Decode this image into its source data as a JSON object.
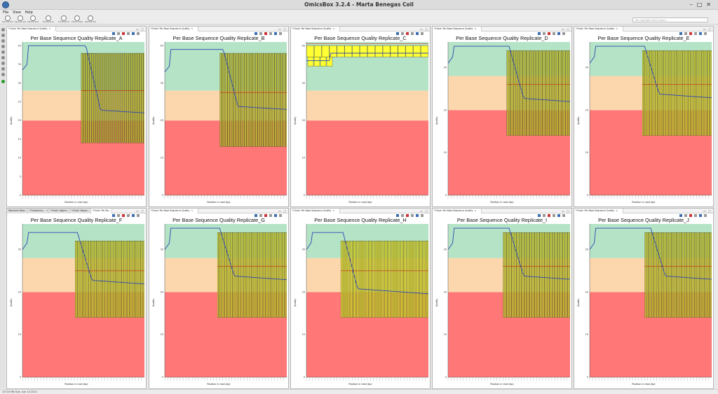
{
  "app": {
    "title": "OmicsBox 3.2.4 - Marta Benegas Coll",
    "window_controls": [
      "–",
      "□",
      "✕"
    ]
  },
  "menu": [
    "File",
    "View",
    "Help"
  ],
  "toolbar": {
    "buttons": [
      "Genome Tools",
      "Genome Analysis",
      "Genome Tools",
      "Functional Analysis",
      "Functional Analysis",
      "Omics Analysis",
      "Genome Tools",
      "OmicsBox"
    ],
    "search_placeholder": "Run highlight search cases..."
  },
  "status": "10716 MB Size, Apr 24 2024",
  "colors": {
    "green": "#b4e3c6",
    "orange": "#fcd7ae",
    "red": "#ff7777",
    "box": "#ffff33",
    "line": "#2b47b3"
  },
  "charts": [
    {
      "id": "A",
      "title": "Per Base Sequence Quality Replicate_A",
      "tab": "*Chart: Per Base Sequence Quality",
      "ylabel": "Quality",
      "xlabel": "Position in read (bp)",
      "ymax": 41,
      "yticks": [
        0,
        5,
        10,
        15,
        20,
        25,
        30,
        35,
        40
      ],
      "drop": 0.52,
      "top": 40,
      "hi": 37.5,
      "lo": 23,
      "boxHi": 38,
      "boxLo": 14,
      "boxStart": 0.48,
      "boxDense": 60,
      "redBand": true
    },
    {
      "id": "B",
      "title": "Per Base Sequence Quality Replicate_B",
      "tab": "*Chart: Per Base Sequence Quality",
      "ylabel": "Quality",
      "xlabel": "Position in read (bp)",
      "ymax": 41,
      "yticks": [
        0,
        10,
        20,
        30,
        40
      ],
      "drop": 0.48,
      "top": 39,
      "hi": 37,
      "lo": 24,
      "boxHi": 38,
      "boxLo": 13,
      "boxStart": 0.45,
      "boxDense": 60,
      "redBand": true
    },
    {
      "id": "C",
      "title": "Per Base Sequence Quality Replicate_C",
      "tab": "*Chart: Per Base Sequence Quality",
      "ylabel": "Quality",
      "xlabel": "Position in read (bp)",
      "ymax": 41,
      "yticks": [
        0,
        10,
        20,
        30,
        40
      ],
      "drop": 0.0,
      "top": 38,
      "hi": 38,
      "lo": 38,
      "boxHi": 40,
      "boxLo": 37,
      "boxStart": 0.0,
      "boxDense": 16,
      "redBand": false,
      "flat": true
    },
    {
      "id": "D",
      "title": "Per Base Sequence Quality Replicate_D",
      "tab": "*Chart: Per Base Sequence Quality",
      "ylabel": "Quality",
      "xlabel": "Position in read (bp)",
      "ymax": 36,
      "yticks": [
        0,
        10,
        20,
        30
      ],
      "drop": 0.5,
      "top": 35,
      "hi": 35,
      "lo": 23,
      "boxHi": 34,
      "boxLo": 14,
      "boxStart": 0.48,
      "boxDense": 55,
      "redBand": false
    },
    {
      "id": "E",
      "title": "Per Base Sequence Quality Replicate_E",
      "tab": "*Chart: Per Base Sequence Quality",
      "ylabel": "Quality",
      "xlabel": "Position in read (bp)",
      "ymax": 36,
      "yticks": [
        0,
        10,
        20,
        30
      ],
      "drop": 0.45,
      "top": 35,
      "hi": 35,
      "lo": 24,
      "boxHi": 34,
      "boxLo": 14,
      "boxStart": 0.43,
      "boxDense": 55,
      "redBand": false
    },
    {
      "id": "F",
      "title": "Per Base Sequence Quality Replicate_F",
      "tab": "*Chart: Per Ba...",
      "ylabel": "Quality",
      "xlabel": "Position in read (bp)",
      "ymax": 36,
      "yticks": [
        0,
        10,
        20,
        30
      ],
      "drop": 0.45,
      "top": 34,
      "hi": 34,
      "lo": 23,
      "boxHi": 32,
      "boxLo": 14,
      "boxStart": 0.43,
      "boxDense": 55,
      "redBand": false
    },
    {
      "id": "G",
      "title": "Per Base Sequence Quality Replicate_G",
      "tab": "*Chart: Per Base Sequence Quality",
      "ylabel": "Quality",
      "xlabel": "Position in read (bp)",
      "ymax": 36,
      "yticks": [
        0,
        10,
        20,
        30
      ],
      "drop": 0.45,
      "top": 35,
      "hi": 34,
      "lo": 24,
      "boxHi": 34,
      "boxLo": 14,
      "boxStart": 0.43,
      "boxDense": 55,
      "redBand": false
    },
    {
      "id": "H",
      "title": "Per Base Sequence Quality Replicate_H",
      "tab": "*Chart: Per Base Sequence Quality",
      "ylabel": "Quality",
      "xlabel": "Position in read (bp)",
      "ymax": 36,
      "yticks": [
        0,
        10,
        20,
        30
      ],
      "drop": 0.3,
      "top": 34,
      "hi": 34,
      "lo": 21,
      "boxHi": 32,
      "boxLo": 14,
      "boxStart": 0.28,
      "boxDense": 60,
      "redBand": false
    },
    {
      "id": "I",
      "title": "Per Base Sequence Quality Replicate_I",
      "tab": "*Chart: Per Base Sequence Quality",
      "ylabel": "Quality",
      "xlabel": "Position in read (bp)",
      "ymax": 36,
      "yticks": [
        0,
        10,
        20,
        30
      ],
      "drop": 0.5,
      "top": 35,
      "hi": 34,
      "lo": 24,
      "boxHi": 34,
      "boxLo": 14,
      "boxStart": 0.45,
      "boxDense": 55,
      "redBand": false
    },
    {
      "id": "J",
      "title": "Per Base Sequence Quality Replicate_J",
      "tab": "*Chart: Per Base Sequence Quality",
      "ylabel": "Quality",
      "xlabel": "Position in read (bp)",
      "ymax": 36,
      "yticks": [
        0,
        10,
        20,
        30
      ],
      "drop": 0.5,
      "top": 35,
      "hi": 34,
      "lo": 24,
      "boxHi": 34,
      "boxLo": 14,
      "boxStart": 0.45,
      "boxDense": 55,
      "redBand": false
    }
  ],
  "extra_tabs_F": [
    "Welcome Wiza...",
    "*Contamina...",
    "*Chart: Alignm...",
    "*Chart: Seque..."
  ],
  "chart_data": [
    {
      "type": "line",
      "title": "Per Base Sequence Quality Replicate_A",
      "xlabel": "Position in read (bp)",
      "ylabel": "Quality",
      "ylim": [
        0,
        41
      ]
    },
    {
      "type": "line",
      "title": "Per Base Sequence Quality Replicate_B",
      "xlabel": "Position in read (bp)",
      "ylabel": "Quality",
      "ylim": [
        0,
        41
      ]
    },
    {
      "type": "line",
      "title": "Per Base Sequence Quality Replicate_C",
      "xlabel": "Position in read (bp)",
      "ylabel": "Quality",
      "ylim": [
        0,
        41
      ]
    },
    {
      "type": "line",
      "title": "Per Base Sequence Quality Replicate_D",
      "xlabel": "Position in read (bp)",
      "ylabel": "Quality",
      "ylim": [
        0,
        36
      ]
    },
    {
      "type": "line",
      "title": "Per Base Sequence Quality Replicate_E",
      "xlabel": "Position in read (bp)",
      "ylabel": "Quality",
      "ylim": [
        0,
        36
      ]
    },
    {
      "type": "line",
      "title": "Per Base Sequence Quality Replicate_F",
      "xlabel": "Position in read (bp)",
      "ylabel": "Quality",
      "ylim": [
        0,
        36
      ]
    },
    {
      "type": "line",
      "title": "Per Base Sequence Quality Replicate_G",
      "xlabel": "Position in read (bp)",
      "ylabel": "Quality",
      "ylim": [
        0,
        36
      ]
    },
    {
      "type": "line",
      "title": "Per Base Sequence Quality Replicate_H",
      "xlabel": "Position in read (bp)",
      "ylabel": "Quality",
      "ylim": [
        0,
        36
      ]
    },
    {
      "type": "line",
      "title": "Per Base Sequence Quality Replicate_I",
      "xlabel": "Position in read (bp)",
      "ylabel": "Quality",
      "ylim": [
        0,
        36
      ]
    },
    {
      "type": "line",
      "title": "Per Base Sequence Quality Replicate_J",
      "xlabel": "Position in read (bp)",
      "ylabel": "Quality",
      "ylim": [
        0,
        36
      ]
    }
  ]
}
